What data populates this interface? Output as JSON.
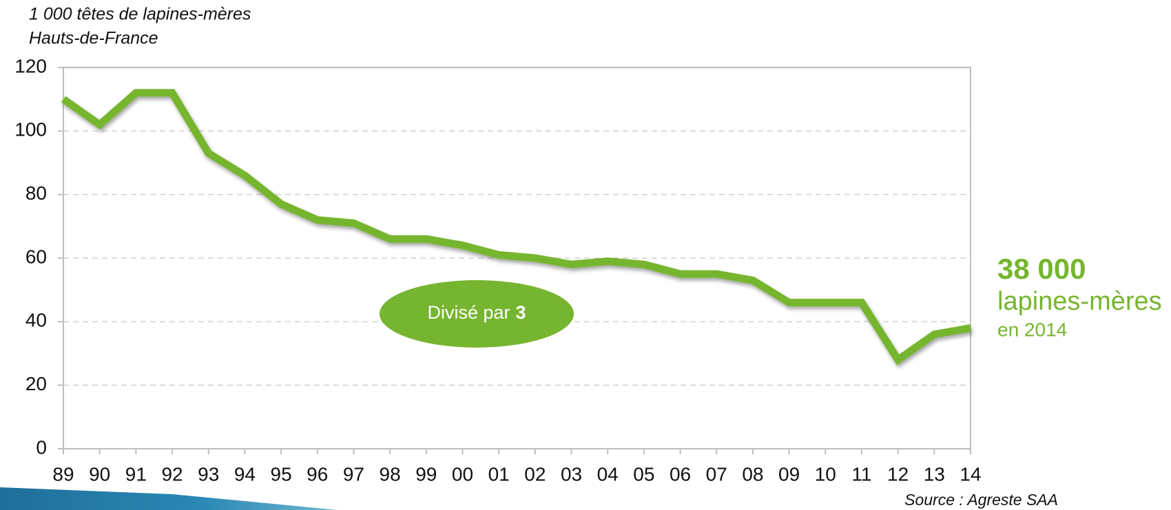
{
  "chart_data": {
    "type": "line",
    "y_label_lines": [
      "1 000 têtes de lapines-mères",
      "Hauts-de-France"
    ],
    "categories": [
      "89",
      "90",
      "91",
      "92",
      "93",
      "94",
      "95",
      "96",
      "97",
      "98",
      "99",
      "00",
      "01",
      "02",
      "03",
      "04",
      "05",
      "06",
      "07",
      "08",
      "09",
      "10",
      "11",
      "12",
      "13",
      "14"
    ],
    "series": [
      {
        "color": "#76b52f",
        "values": [
          110,
          102,
          112,
          112,
          93,
          86,
          77,
          72,
          71,
          66,
          66,
          64,
          61,
          60,
          58,
          59,
          58,
          55,
          55,
          53,
          46,
          46,
          46,
          28,
          36,
          38
        ]
      }
    ],
    "ylim": [
      0,
      120
    ],
    "yticks": [
      0,
      20,
      40,
      60,
      80,
      100,
      120
    ],
    "grid": true,
    "annotation": {
      "text": "Divisé par",
      "emphasis": "3"
    },
    "callout": {
      "number": "38 000",
      "line1": "lapines-mères",
      "line2": "en 2014"
    },
    "source": "Source : Agreste SAA"
  }
}
